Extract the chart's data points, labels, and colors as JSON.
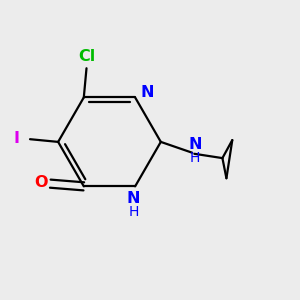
{
  "background_color": "#ececec",
  "bond_color": "#000000",
  "bond_width": 1.6,
  "atom_colors": {
    "N": "#0000ff",
    "O": "#ff0000",
    "Cl": "#00bb00",
    "I": "#dd00ee"
  },
  "figsize": [
    3.0,
    3.0
  ],
  "dpi": 100,
  "xlim": [
    -2.0,
    3.5
  ],
  "ylim": [
    -2.3,
    2.0
  ]
}
